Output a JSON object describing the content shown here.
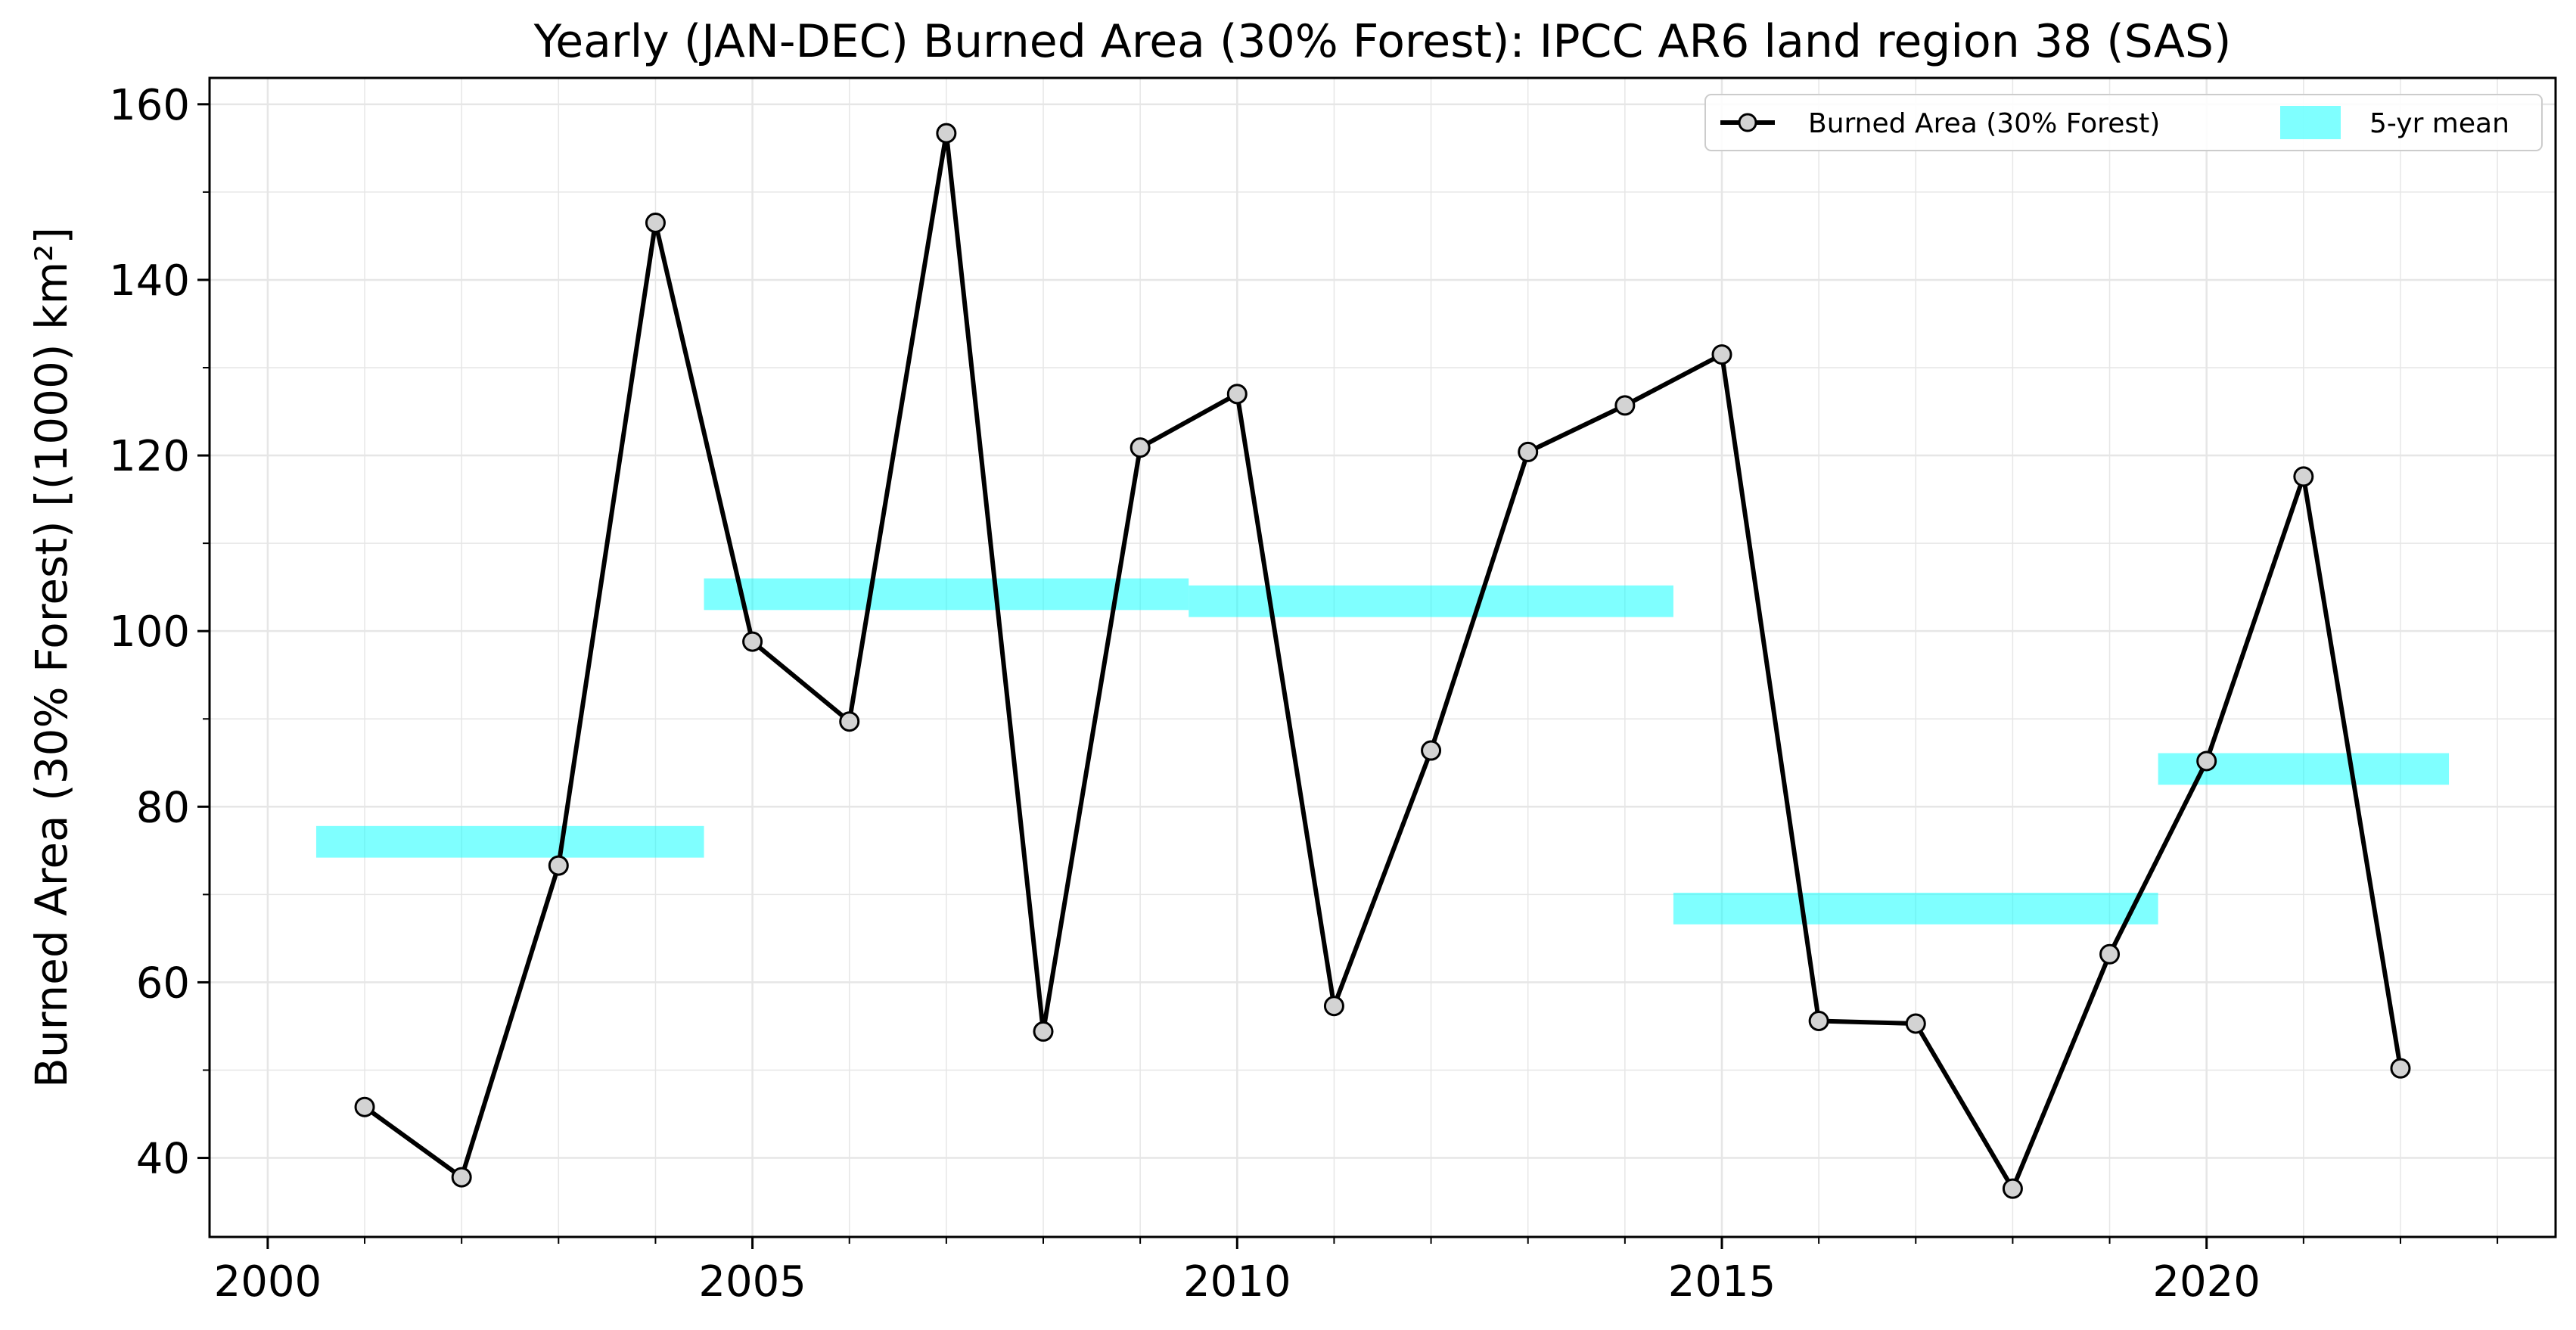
{
  "chart_data": {
    "type": "line",
    "title": "Yearly (JAN-DEC) Burned Area (30% Forest): IPCC AR6 land region 38 (SAS)",
    "xlabel": "",
    "ylabel": "Burned Area (30% Forest) [(1000) km²]",
    "xlim": [
      1999.4,
      2023.6
    ],
    "ylim": [
      31,
      163
    ],
    "x_ticks": [
      2000,
      2005,
      2010,
      2015,
      2020
    ],
    "y_ticks": [
      40,
      60,
      80,
      100,
      120,
      140,
      160
    ],
    "grid": true,
    "legend_position": "top-right",
    "series": [
      {
        "name": "Burned Area (30% Forest)",
        "type": "line",
        "color": "#000000",
        "marker_fill": "#d3d3d3",
        "x": [
          2001,
          2002,
          2003,
          2004,
          2005,
          2006,
          2007,
          2008,
          2009,
          2010,
          2011,
          2012,
          2013,
          2014,
          2015,
          2016,
          2017,
          2018,
          2019,
          2020,
          2021,
          2022
        ],
        "values": [
          45.8,
          37.8,
          73.3,
          146.5,
          98.8,
          89.7,
          156.7,
          54.4,
          120.9,
          127.0,
          57.3,
          86.4,
          120.4,
          125.7,
          131.5,
          55.6,
          55.3,
          36.5,
          63.2,
          85.2,
          117.6,
          50.2
        ]
      },
      {
        "name": "5-yr mean",
        "type": "band",
        "color": "#00ffff",
        "opacity": 0.5,
        "segments": [
          {
            "x_start": 2000.5,
            "x_end": 2004.5,
            "value": 76.0
          },
          {
            "x_start": 2004.5,
            "x_end": 2009.5,
            "value": 104.2
          },
          {
            "x_start": 2009.5,
            "x_end": 2014.5,
            "value": 103.4
          },
          {
            "x_start": 2014.5,
            "x_end": 2019.5,
            "value": 68.4
          },
          {
            "x_start": 2019.5,
            "x_end": 2022.5,
            "value": 84.3
          }
        ]
      }
    ]
  }
}
